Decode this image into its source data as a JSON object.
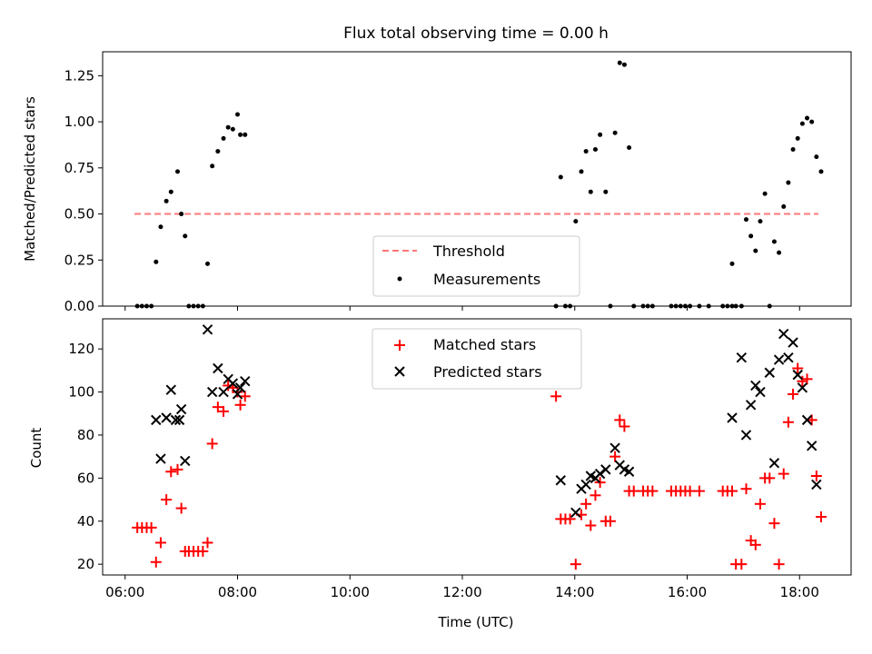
{
  "chart_data": [
    {
      "type": "scatter",
      "title": "Flux total observing time = 0.00 h",
      "xlabel": "",
      "ylabel": "Matched/Predicted stars",
      "xlim": [
        "05:36",
        "18:55"
      ],
      "ylim": [
        0,
        1.38
      ],
      "yticks": [
        0.0,
        0.25,
        0.5,
        0.75,
        1.0,
        1.25
      ],
      "ytick_labels": [
        "0.00",
        "0.25",
        "0.50",
        "0.75",
        "1.00",
        "1.25"
      ],
      "legend": {
        "location": "lower-center",
        "entries": [
          "Threshold",
          "Measurements"
        ]
      },
      "threshold": {
        "name": "Threshold",
        "value": 0.5,
        "x": [
          "06:10",
          "18:20"
        ],
        "color": "#ff7777",
        "style": "dashed"
      },
      "series": [
        {
          "name": "Measurements",
          "color": "#000000",
          "marker": "dot",
          "points": [
            [
              "06:13",
              0.0
            ],
            [
              "06:18",
              0.0
            ],
            [
              "06:23",
              0.0
            ],
            [
              "06:28",
              0.0
            ],
            [
              "06:33",
              0.24
            ],
            [
              "06:38",
              0.43
            ],
            [
              "06:44",
              0.57
            ],
            [
              "06:49",
              0.62
            ],
            [
              "06:56",
              0.73
            ],
            [
              "07:00",
              0.5
            ],
            [
              "07:04",
              0.38
            ],
            [
              "07:08",
              0.0
            ],
            [
              "07:13",
              0.0
            ],
            [
              "07:18",
              0.0
            ],
            [
              "07:23",
              0.0
            ],
            [
              "07:28",
              0.23
            ],
            [
              "07:33",
              0.76
            ],
            [
              "07:39",
              0.84
            ],
            [
              "07:45",
              0.91
            ],
            [
              "07:50",
              0.97
            ],
            [
              "07:55",
              0.96
            ],
            [
              "08:00",
              1.04
            ],
            [
              "08:03",
              0.93
            ],
            [
              "08:08",
              0.93
            ],
            [
              "13:40",
              0.0
            ],
            [
              "13:45",
              0.7
            ],
            [
              "13:50",
              0.0
            ],
            [
              "13:55",
              0.0
            ],
            [
              "14:01",
              0.46
            ],
            [
              "14:07",
              0.73
            ],
            [
              "14:12",
              0.84
            ],
            [
              "14:17",
              0.62
            ],
            [
              "14:22",
              0.85
            ],
            [
              "14:27",
              0.93
            ],
            [
              "14:33",
              0.62
            ],
            [
              "14:38",
              0.0
            ],
            [
              "14:43",
              0.94
            ],
            [
              "14:48",
              1.32
            ],
            [
              "14:53",
              1.31
            ],
            [
              "14:58",
              0.86
            ],
            [
              "15:03",
              0.0
            ],
            [
              "15:13",
              0.0
            ],
            [
              "15:18",
              0.0
            ],
            [
              "15:23",
              0.0
            ],
            [
              "15:43",
              0.0
            ],
            [
              "15:48",
              0.0
            ],
            [
              "15:53",
              0.0
            ],
            [
              "15:58",
              0.0
            ],
            [
              "16:03",
              0.0
            ],
            [
              "16:13",
              0.0
            ],
            [
              "16:23",
              0.0
            ],
            [
              "16:38",
              0.0
            ],
            [
              "16:43",
              0.0
            ],
            [
              "16:48",
              0.0
            ],
            [
              "16:52",
              0.0
            ],
            [
              "16:58",
              0.0
            ],
            [
              "16:48",
              0.23
            ],
            [
              "17:03",
              0.47
            ],
            [
              "17:08",
              0.38
            ],
            [
              "17:13",
              0.3
            ],
            [
              "17:18",
              0.46
            ],
            [
              "17:23",
              0.61
            ],
            [
              "17:28",
              0.0
            ],
            [
              "17:33",
              0.35
            ],
            [
              "17:38",
              0.29
            ],
            [
              "17:43",
              0.54
            ],
            [
              "17:48",
              0.67
            ],
            [
              "17:53",
              0.85
            ],
            [
              "17:58",
              0.91
            ],
            [
              "18:03",
              0.99
            ],
            [
              "18:08",
              1.02
            ],
            [
              "18:13",
              1.0
            ],
            [
              "18:18",
              0.81
            ],
            [
              "18:23",
              0.73
            ]
          ]
        }
      ]
    },
    {
      "type": "scatter",
      "title": "",
      "xlabel": "Time (UTC)",
      "ylabel": "Count",
      "xlim": [
        "05:36",
        "18:55"
      ],
      "ylim": [
        15,
        134
      ],
      "yticks": [
        20,
        40,
        60,
        80,
        100,
        120
      ],
      "xticks": [
        "06:00",
        "08:00",
        "10:00",
        "12:00",
        "14:00",
        "16:00",
        "18:00"
      ],
      "legend": {
        "location": "upper-center",
        "entries": [
          "Matched stars",
          "Predicted stars"
        ]
      },
      "series": [
        {
          "name": "Matched stars",
          "color": "#ff0000",
          "marker": "plus",
          "points": [
            [
              "06:13",
              37
            ],
            [
              "06:18",
              37
            ],
            [
              "06:23",
              37
            ],
            [
              "06:28",
              37
            ],
            [
              "06:33",
              21
            ],
            [
              "06:38",
              30
            ],
            [
              "06:44",
              50
            ],
            [
              "06:49",
              63
            ],
            [
              "06:56",
              64
            ],
            [
              "07:00",
              46
            ],
            [
              "07:04",
              26
            ],
            [
              "07:08",
              26
            ],
            [
              "07:13",
              26
            ],
            [
              "07:18",
              26
            ],
            [
              "07:23",
              26
            ],
            [
              "07:28",
              30
            ],
            [
              "07:33",
              76
            ],
            [
              "07:39",
              93
            ],
            [
              "07:45",
              91
            ],
            [
              "07:50",
              103
            ],
            [
              "07:55",
              102
            ],
            [
              "08:00",
              100
            ],
            [
              "08:03",
              94
            ],
            [
              "08:08",
              98
            ],
            [
              "13:40",
              98
            ],
            [
              "13:45",
              41
            ],
            [
              "13:50",
              41
            ],
            [
              "13:55",
              41
            ],
            [
              "14:01",
              20
            ],
            [
              "14:07",
              43
            ],
            [
              "14:12",
              48
            ],
            [
              "14:17",
              38
            ],
            [
              "14:22",
              52
            ],
            [
              "14:27",
              58
            ],
            [
              "14:33",
              40
            ],
            [
              "14:38",
              40
            ],
            [
              "14:43",
              70
            ],
            [
              "14:48",
              87
            ],
            [
              "14:53",
              84
            ],
            [
              "14:58",
              54
            ],
            [
              "15:03",
              54
            ],
            [
              "15:13",
              54
            ],
            [
              "15:18",
              54
            ],
            [
              "15:23",
              54
            ],
            [
              "15:43",
              54
            ],
            [
              "15:48",
              54
            ],
            [
              "15:53",
              54
            ],
            [
              "15:58",
              54
            ],
            [
              "16:03",
              54
            ],
            [
              "16:13",
              54
            ],
            [
              "16:38",
              54
            ],
            [
              "16:43",
              54
            ],
            [
              "16:48",
              54
            ],
            [
              "16:52",
              20
            ],
            [
              "16:58",
              20
            ],
            [
              "17:03",
              55
            ],
            [
              "17:08",
              31
            ],
            [
              "17:13",
              29
            ],
            [
              "17:18",
              48
            ],
            [
              "17:23",
              60
            ],
            [
              "17:28",
              60
            ],
            [
              "17:33",
              39
            ],
            [
              "17:38",
              20
            ],
            [
              "17:43",
              62
            ],
            [
              "17:48",
              86
            ],
            [
              "17:53",
              99
            ],
            [
              "17:58",
              111
            ],
            [
              "18:03",
              105
            ],
            [
              "18:08",
              106
            ],
            [
              "18:13",
              87
            ],
            [
              "18:18",
              61
            ],
            [
              "18:23",
              42
            ]
          ]
        },
        {
          "name": "Predicted stars",
          "color": "#000000",
          "marker": "x",
          "points": [
            [
              "06:33",
              87
            ],
            [
              "06:38",
              69
            ],
            [
              "06:44",
              88
            ],
            [
              "06:49",
              101
            ],
            [
              "06:54",
              87
            ],
            [
              "06:58",
              87
            ],
            [
              "07:00",
              92
            ],
            [
              "07:04",
              68
            ],
            [
              "07:28",
              129
            ],
            [
              "07:33",
              100
            ],
            [
              "07:39",
              111
            ],
            [
              "07:45",
              100
            ],
            [
              "07:50",
              106
            ],
            [
              "07:55",
              104
            ],
            [
              "08:00",
              99
            ],
            [
              "08:03",
              102
            ],
            [
              "08:08",
              105
            ],
            [
              "13:45",
              59
            ],
            [
              "14:01",
              44
            ],
            [
              "14:07",
              55
            ],
            [
              "14:12",
              57
            ],
            [
              "14:17",
              61
            ],
            [
              "14:22",
              60
            ],
            [
              "14:27",
              62
            ],
            [
              "14:33",
              64
            ],
            [
              "14:43",
              74
            ],
            [
              "14:48",
              66
            ],
            [
              "14:53",
              64
            ],
            [
              "14:58",
              63
            ],
            [
              "16:48",
              88
            ],
            [
              "16:58",
              116
            ],
            [
              "17:03",
              80
            ],
            [
              "17:08",
              94
            ],
            [
              "17:13",
              103
            ],
            [
              "17:18",
              100
            ],
            [
              "17:28",
              109
            ],
            [
              "17:33",
              67
            ],
            [
              "17:38",
              115
            ],
            [
              "17:43",
              127
            ],
            [
              "17:48",
              116
            ],
            [
              "17:53",
              123
            ],
            [
              "17:58",
              108
            ],
            [
              "18:03",
              102
            ],
            [
              "18:08",
              87
            ],
            [
              "18:13",
              75
            ],
            [
              "18:18",
              57
            ]
          ]
        }
      ]
    }
  ]
}
